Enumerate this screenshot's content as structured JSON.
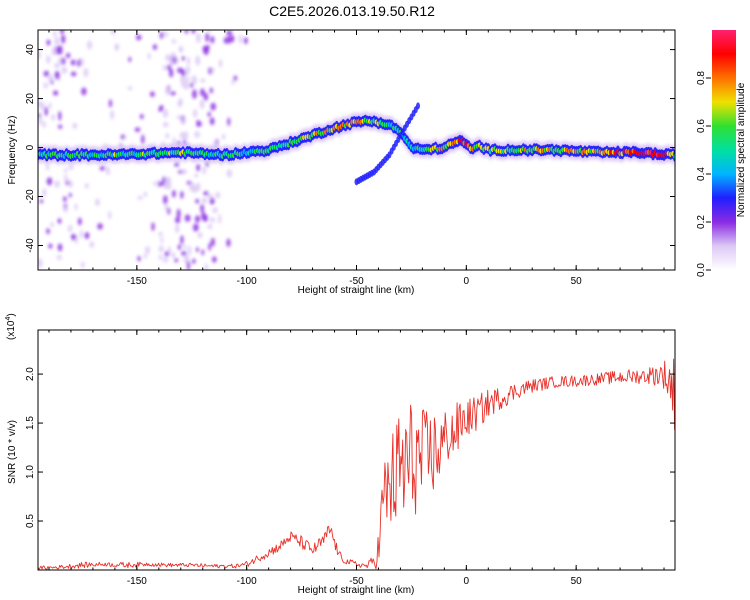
{
  "title": "C2E5.2026.013.19.50.R12",
  "chart_data": [
    {
      "type": "heatmap",
      "name": "spectrogram",
      "xlabel": "Height of straight line (km)",
      "ylabel": "Frequency (Hz)",
      "xlim": [
        -195,
        95
      ],
      "ylim": [
        -50,
        48
      ],
      "xticks": [
        -150,
        -100,
        -50,
        0,
        50
      ],
      "yticks": [
        -40,
        -20,
        0,
        20,
        40
      ],
      "colorbar": {
        "label": "Normalized spectral amplitude",
        "range": [
          0,
          1
        ],
        "ticks": [
          0.0,
          0.2,
          0.4,
          0.6,
          0.8
        ],
        "tick_labels": [
          "0.0",
          "0.2",
          "0.4",
          "0.6",
          "0.8"
        ],
        "colors": [
          "#ffffff",
          "#dcc8f5",
          "#8a2be2",
          "#1f1fff",
          "#00b4ff",
          "#00e0a0",
          "#30e030",
          "#f0e000",
          "#ff7000",
          "#ff0000",
          "#ff2070"
        ]
      },
      "ridge": {
        "x": [
          -195,
          -160,
          -130,
          -110,
          -100,
          -90,
          -80,
          -70,
          -60,
          -52,
          -45,
          -38,
          -32,
          -28,
          -25,
          -20,
          -10,
          -3,
          0,
          3,
          5,
          10,
          20,
          40,
          60,
          80,
          90,
          95
        ],
        "freq": [
          -3,
          -3,
          -2,
          -3,
          -2,
          -1,
          2,
          5,
          8,
          10,
          11,
          10,
          8,
          4,
          0,
          -1,
          0,
          3,
          1,
          -1,
          1,
          -1,
          -1,
          -1,
          -2,
          -2,
          -3,
          -3
        ],
        "strength": [
          0.5,
          0.55,
          0.6,
          0.5,
          0.45,
          0.55,
          0.6,
          0.65,
          0.7,
          0.72,
          0.7,
          0.6,
          0.5,
          0.4,
          0.4,
          0.6,
          0.7,
          0.8,
          0.85,
          0.7,
          0.6,
          0.6,
          0.65,
          0.7,
          0.75,
          0.9,
          0.95,
          0.6
        ]
      },
      "branch": {
        "x": [
          -50,
          -42,
          -35,
          -28,
          -22
        ],
        "freq": [
          -14,
          -10,
          -3,
          8,
          17
        ]
      }
    },
    {
      "type": "line",
      "name": "snr",
      "xlabel": "Height of straight line (km)",
      "ylabel": "SNR (10 * v/v)",
      "scale_label": "(x10",
      "scale_exponent": "4",
      "series_color": "#e8312a",
      "xlim": [
        -195,
        95
      ],
      "ylim": [
        0,
        2.45
      ],
      "xticks": [
        -150,
        -100,
        -50,
        0,
        50
      ],
      "yticks": [
        0.5,
        1.0,
        1.5,
        2.0
      ],
      "ytick_labels": [
        "0.5",
        "1.0",
        "1.5",
        "2.0"
      ],
      "x": [
        -195,
        -185,
        -175,
        -165,
        -155,
        -145,
        -135,
        -125,
        -115,
        -105,
        -100,
        -95,
        -90,
        -85,
        -80,
        -75,
        -70,
        -65,
        -62,
        -58,
        -55,
        -50,
        -45,
        -42,
        -40,
        -38,
        -35,
        -32,
        -30,
        -28,
        -25,
        -22,
        -20,
        -18,
        -15,
        -12,
        -10,
        -8,
        -5,
        -2,
        0,
        5,
        10,
        15,
        20,
        25,
        30,
        40,
        50,
        60,
        70,
        80,
        85,
        90,
        93,
        95
      ],
      "y": [
        0.02,
        0.03,
        0.05,
        0.06,
        0.05,
        0.06,
        0.05,
        0.05,
        0.04,
        0.04,
        0.06,
        0.12,
        0.18,
        0.24,
        0.34,
        0.28,
        0.2,
        0.3,
        0.42,
        0.15,
        0.09,
        0.06,
        0.04,
        0.1,
        0.2,
        0.7,
        0.85,
        0.95,
        1.0,
        1.05,
        1.1,
        1.15,
        1.1,
        1.15,
        1.2,
        1.25,
        1.3,
        1.4,
        1.4,
        1.5,
        1.55,
        1.6,
        1.7,
        1.75,
        1.8,
        1.85,
        1.88,
        1.92,
        1.93,
        1.95,
        1.97,
        1.98,
        1.99,
        2.0,
        1.9,
        1.8
      ],
      "noise": [
        0.02,
        0.02,
        0.03,
        0.02,
        0.03,
        0.02,
        0.02,
        0.02,
        0.02,
        0.02,
        0.03,
        0.04,
        0.05,
        0.05,
        0.06,
        0.07,
        0.06,
        0.07,
        0.08,
        0.05,
        0.03,
        0.03,
        0.03,
        0.08,
        0.2,
        0.4,
        0.5,
        0.6,
        0.7,
        0.75,
        0.65,
        0.55,
        0.55,
        0.5,
        0.45,
        0.4,
        0.35,
        0.3,
        0.3,
        0.25,
        0.2,
        0.18,
        0.15,
        0.12,
        0.1,
        0.08,
        0.07,
        0.06,
        0.06,
        0.06,
        0.07,
        0.08,
        0.1,
        0.15,
        0.3,
        0.4
      ]
    }
  ]
}
